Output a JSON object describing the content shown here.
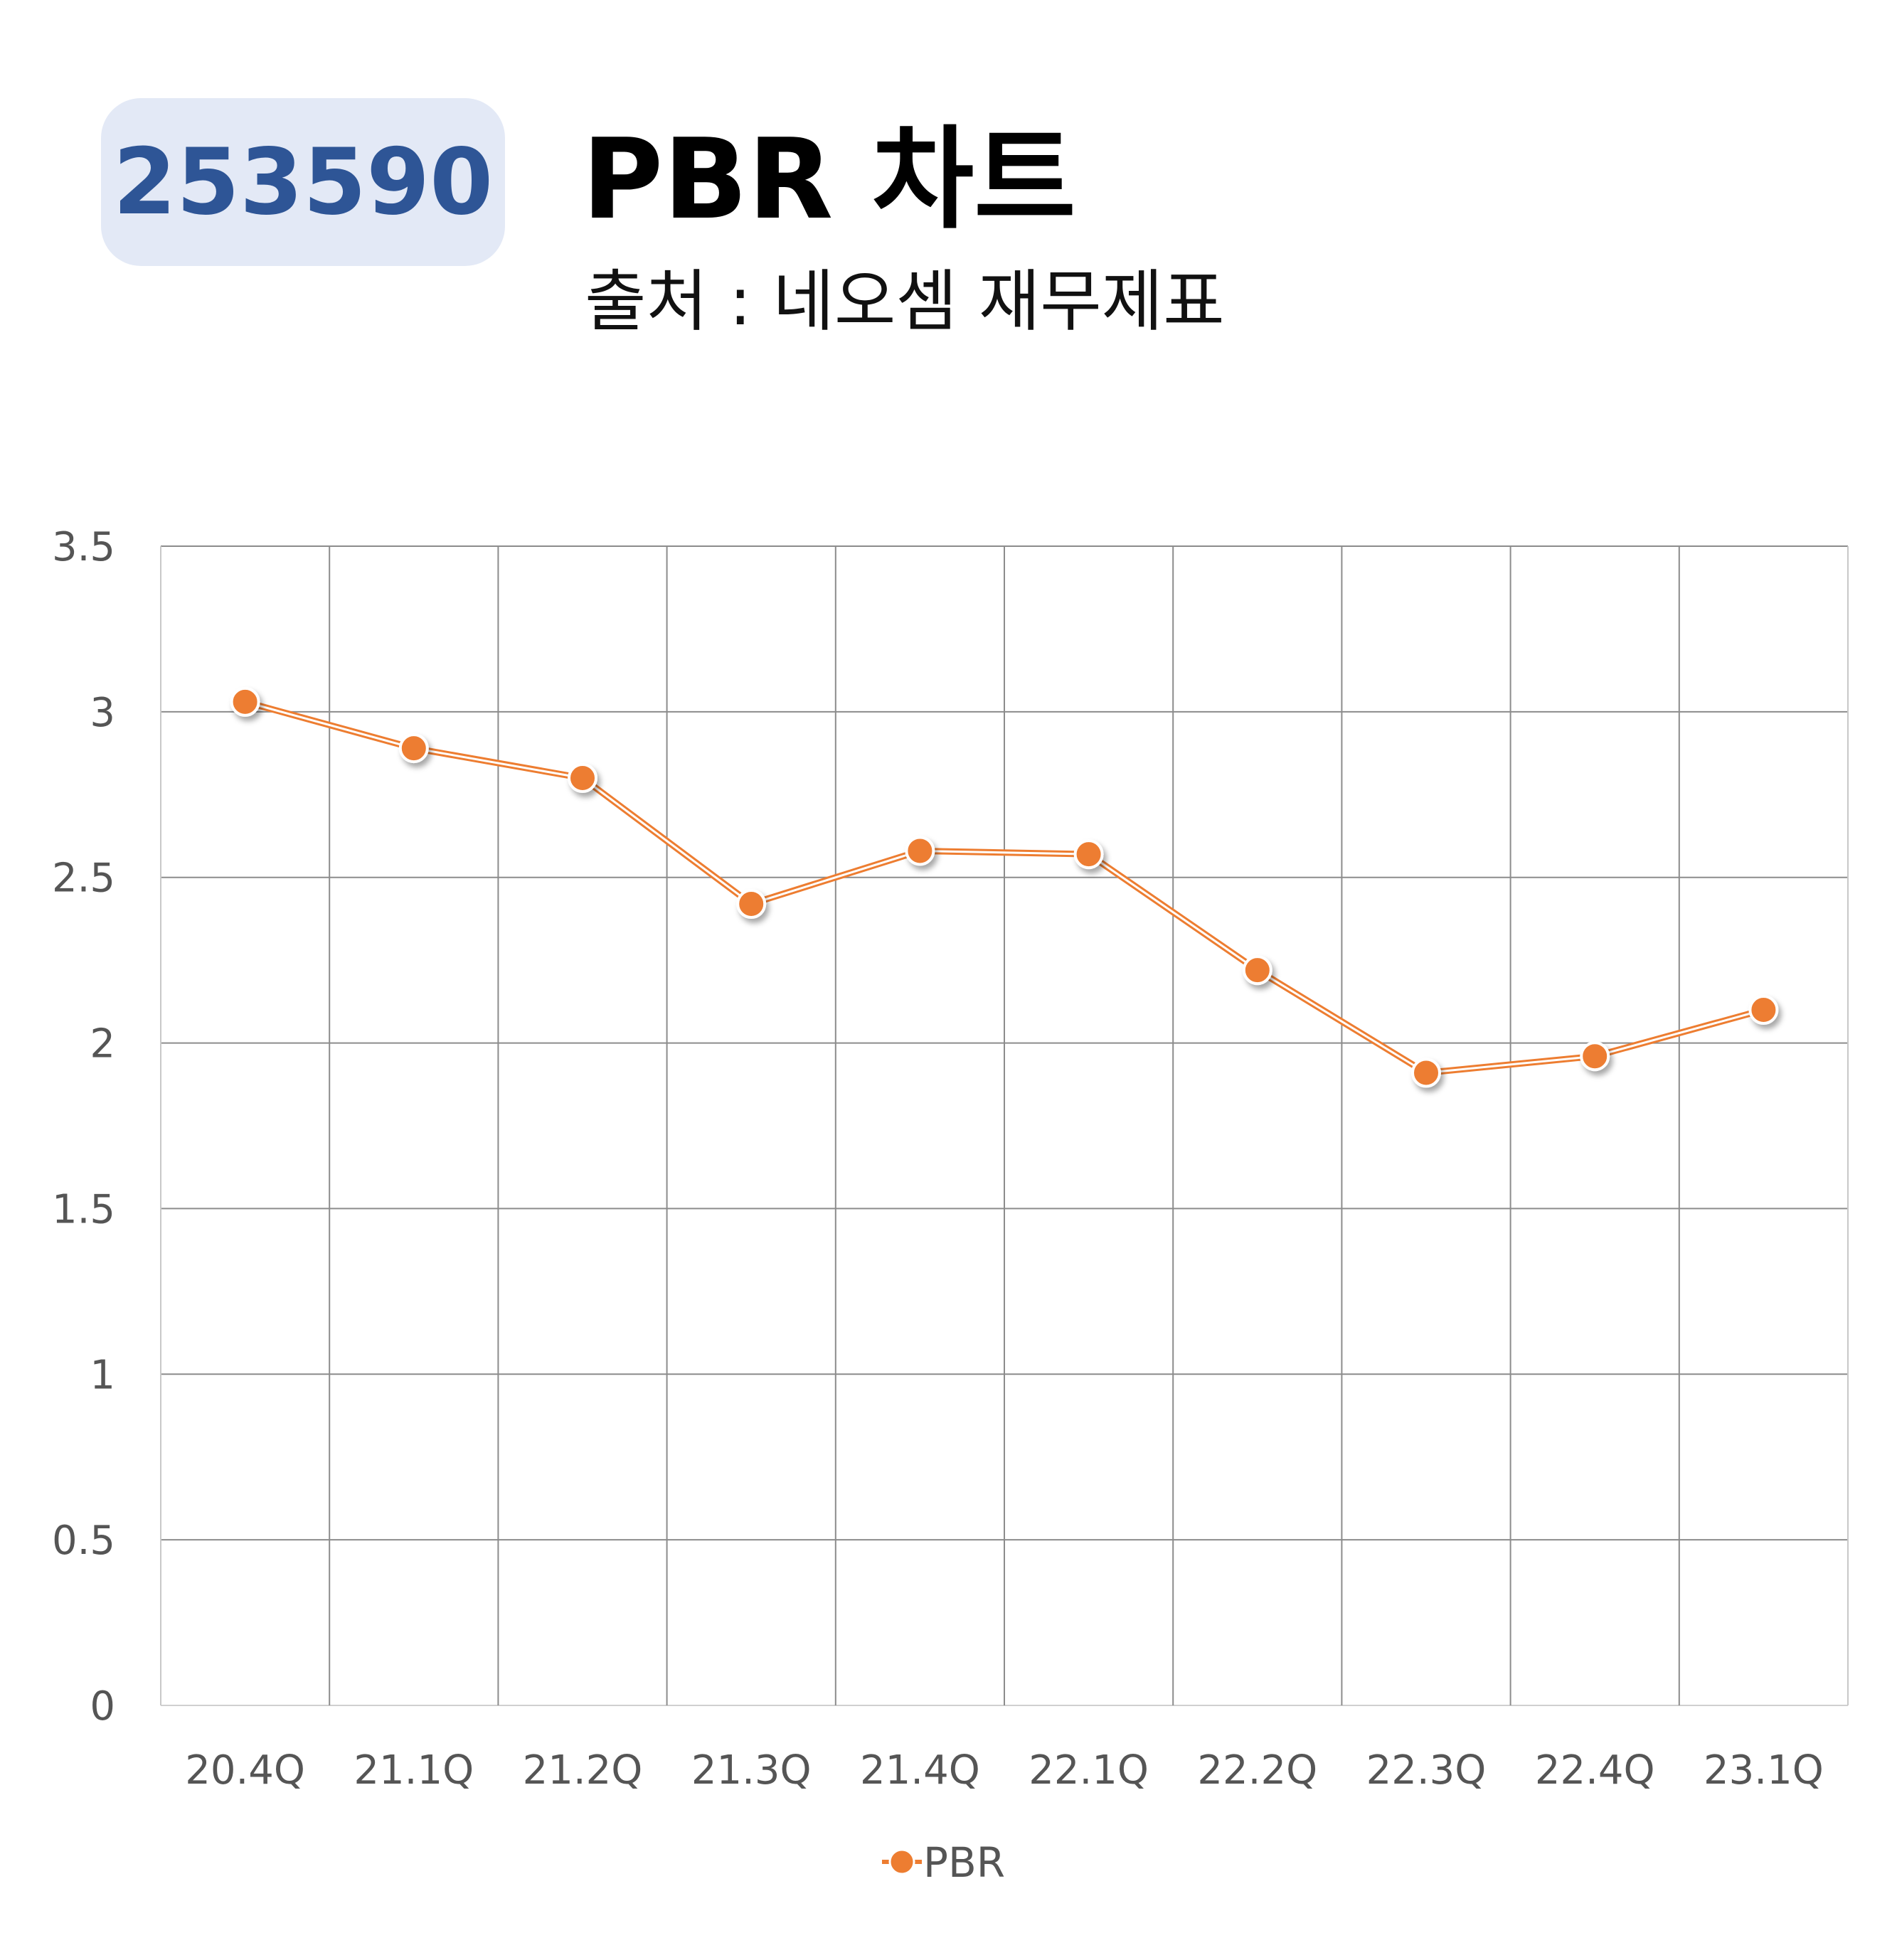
{
  "header": {
    "code_badge": "253590",
    "title": "PBR 차트",
    "subtitle": "출처 : 네오셈 재무제표"
  },
  "chart_data": {
    "type": "line",
    "categories": [
      "20.4Q",
      "21.1Q",
      "21.2Q",
      "21.3Q",
      "21.4Q",
      "22.1Q",
      "22.2Q",
      "22.3Q",
      "22.4Q",
      "23.1Q"
    ],
    "series": [
      {
        "name": "PBR",
        "values": [
          3.03,
          2.89,
          2.8,
          2.42,
          2.58,
          2.57,
          2.22,
          1.91,
          1.96,
          2.1
        ],
        "color": "#ed7d31"
      }
    ],
    "ylim": [
      0,
      3.5
    ],
    "yticks": [
      "0",
      "0.5",
      "1",
      "1.5",
      "2",
      "2.5",
      "3",
      "3.5"
    ],
    "grid": true,
    "legend_position": "bottom"
  }
}
